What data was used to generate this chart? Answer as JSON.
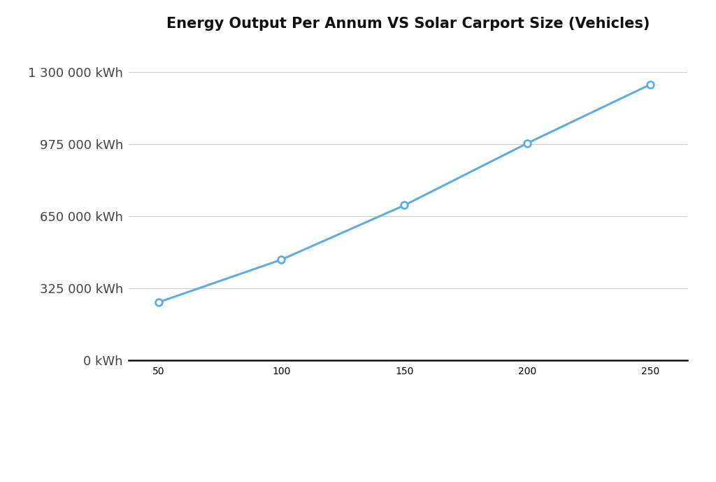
{
  "title": "Energy Output Per Annum VS Solar Carport Size (Vehicles)",
  "x_values": [
    50,
    100,
    150,
    200,
    250
  ],
  "y_values": [
    262500,
    455000,
    700000,
    980000,
    1245000
  ],
  "line_color": "#5DADE2",
  "marker_color": "#5DADE2",
  "background_color": "#ffffff",
  "grid_color": "#d0d0d0",
  "title_fontsize": 15,
  "tick_fontsize": 13,
  "ytick_labels": [
    "0 kWh",
    "325 000 kWh",
    "650 000 kWh",
    "975 000 kWh",
    "1 300 000 kWh"
  ],
  "ytick_values": [
    0,
    325000,
    650000,
    975000,
    1300000
  ],
  "xtick_values": [
    50,
    100,
    150,
    200,
    250
  ],
  "ylim": [
    -200000,
    1430000
  ],
  "xlim": [
    38,
    265
  ]
}
